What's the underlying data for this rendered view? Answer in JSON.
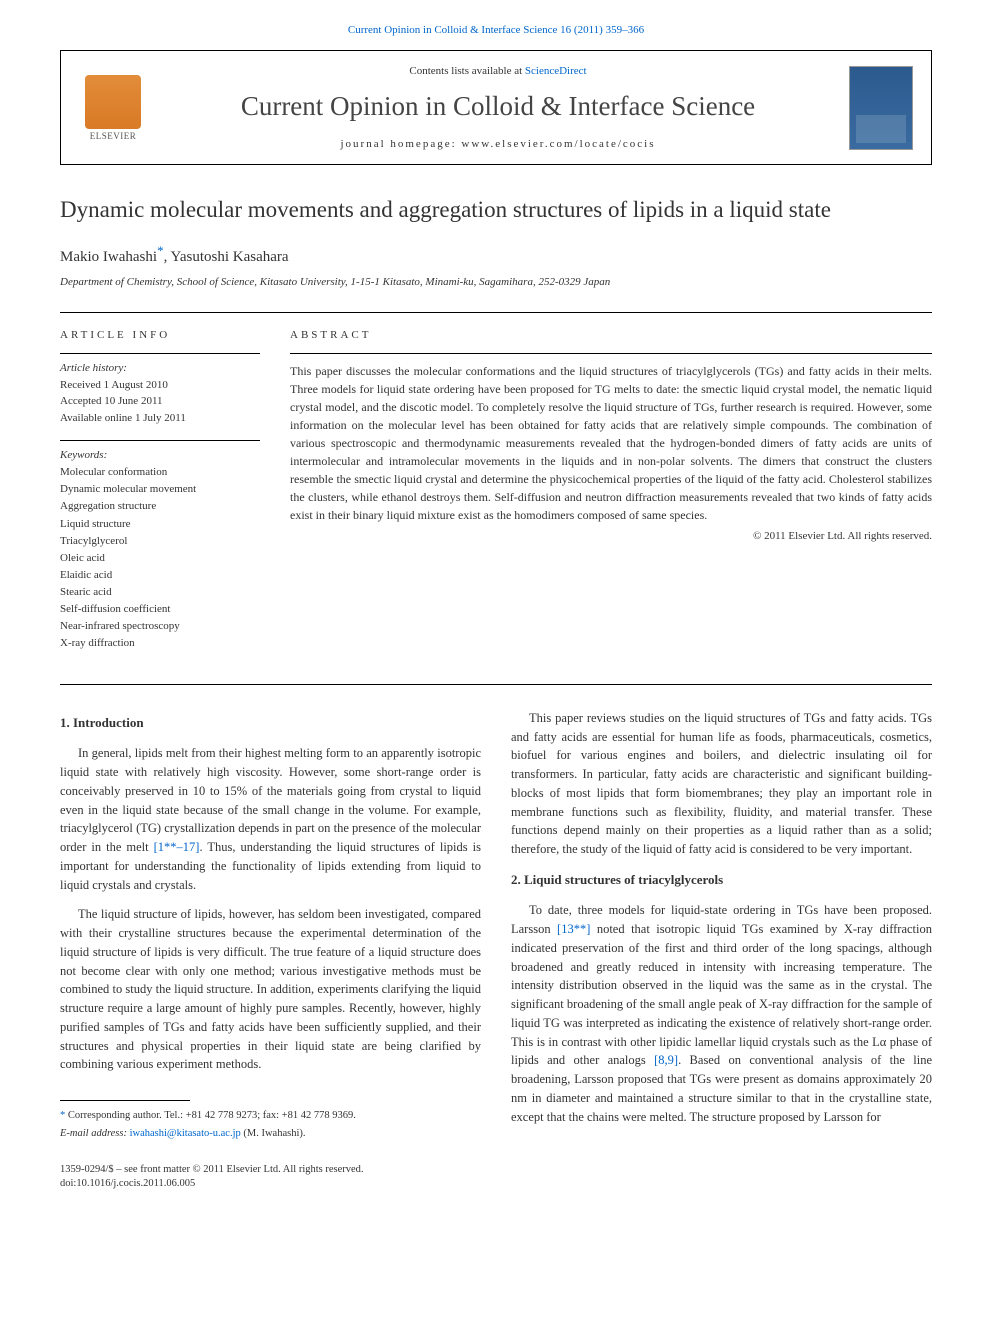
{
  "top_link": "Current Opinion in Colloid & Interface Science 16 (2011) 359–366",
  "header": {
    "contents_prefix": "Contents lists available at ",
    "contents_link": "ScienceDirect",
    "journal": "Current Opinion in Colloid & Interface Science",
    "homepage_prefix": "journal homepage: ",
    "homepage": "www.elsevier.com/locate/cocis",
    "publisher_name": "ELSEVIER"
  },
  "title": "Dynamic molecular movements and aggregation structures of lipids in a liquid state",
  "authors_html": "Makio Iwahashi",
  "author2": ", Yasutoshi Kasahara",
  "corresp_marker": "*",
  "affiliation": "Department of Chemistry, School of Science, Kitasato University, 1-15-1 Kitasato, Minami-ku, Sagamihara, 252-0329 Japan",
  "info": {
    "heading": "ARTICLE INFO",
    "history_label": "Article history:",
    "history": "Received 1 August 2010\nAccepted 10 June 2011\nAvailable online 1 July 2011",
    "keywords_label": "Keywords:",
    "keywords": "Molecular conformation\nDynamic molecular movement\nAggregation structure\nLiquid structure\nTriacylglycerol\nOleic acid\nElaidic acid\nStearic acid\nSelf-diffusion coefficient\nNear-infrared spectroscopy\nX-ray diffraction"
  },
  "abstract": {
    "heading": "ABSTRACT",
    "text": "This paper discusses the molecular conformations and the liquid structures of triacylglycerols (TGs) and fatty acids in their melts. Three models for liquid state ordering have been proposed for TG melts to date: the smectic liquid crystal model, the nematic liquid crystal model, and the discotic model. To completely resolve the liquid structure of TGs, further research is required. However, some information on the molecular level has been obtained for fatty acids that are relatively simple compounds. The combination of various spectroscopic and thermodynamic measurements revealed that the hydrogen-bonded dimers of fatty acids are units of intermolecular and intramolecular movements in the liquids and in non-polar solvents. The dimers that construct the clusters resemble the smectic liquid crystal and determine the physicochemical properties of the liquid of the fatty acid. Cholesterol stabilizes the clusters, while ethanol destroys them. Self-diffusion and neutron diffraction measurements revealed that two kinds of fatty acids exist in their binary liquid mixture exist as the homodimers composed of same species.",
    "copyright": "© 2011 Elsevier Ltd. All rights reserved."
  },
  "sections": {
    "intro_heading": "1. Introduction",
    "intro_p1": "In general, lipids melt from their highest melting form to an apparently isotropic liquid state with relatively high viscosity. However, some short-range order is conceivably preserved in 10 to 15% of the materials going from crystal to liquid even in the liquid state because of the small change in the volume. For example, triacylglycerol (TG) crystallization depends in part on the presence of the molecular order in the melt ",
    "intro_p1_ref": "[1**–17]",
    "intro_p1_tail": ". Thus, understanding the liquid structures of lipids is important for understanding the functionality of lipids extending from liquid to liquid crystals and crystals.",
    "intro_p2": "The liquid structure of lipids, however, has seldom been investigated, compared with their crystalline structures because the experimental determination of the liquid structure of lipids is very difficult. The true feature of a liquid structure does not become clear with only one method; various investigative methods must be combined to study the liquid structure. In addition, experiments clarifying the liquid structure require a large amount of highly pure samples. Recently, however, highly purified samples of TGs and fatty acids have been sufficiently supplied, and their structures and physical properties in their liquid state are being clarified by combining various experiment methods.",
    "col2_p1": "This paper reviews studies on the liquid structures of TGs and fatty acids. TGs and fatty acids are essential for human life as foods, pharmaceuticals, cosmetics, biofuel for various engines and boilers, and dielectric insulating oil for transformers. In particular, fatty acids are characteristic and significant building-blocks of most lipids that form biomembranes; they play an important role in membrane functions such as flexibility, fluidity, and material transfer. These functions depend mainly on their properties as a liquid rather than as a solid; therefore, the study of the liquid of fatty acid is considered to be very important.",
    "sec2_heading": "2. Liquid structures of triacylglycerols",
    "sec2_p1a": "To date, three models for liquid-state ordering in TGs have been proposed. Larsson ",
    "sec2_ref1": "[13**]",
    "sec2_p1b": " noted that isotropic liquid TGs examined by X-ray diffraction indicated preservation of the first and third order of the long spacings, although broadened and greatly reduced in intensity with increasing temperature. The intensity distribution observed in the liquid was the same as in the crystal. The significant broadening of the small angle peak of X-ray diffraction for the sample of liquid TG was interpreted as indicating the existence of relatively short-range order. This is in contrast with other lipidic lamellar liquid crystals such as the Lα phase of lipids and other analogs ",
    "sec2_ref2": "[8,9]",
    "sec2_p1c": ". Based on conventional analysis of the line broadening, Larsson proposed that TGs were present as domains approximately 20 nm in diameter and maintained a structure similar to that in the crystalline state, except that the chains were melted. The structure proposed by Larsson for"
  },
  "footnote": {
    "corresp": "Corresponding author. Tel.: +81 42 778 9273; fax: +81 42 778 9369.",
    "email_label": "E-mail address:",
    "email": "iwahashi@kitasato-u.ac.jp",
    "email_who": "(M. Iwahashi)."
  },
  "bottom": {
    "issn": "1359-0294/$ – see front matter © 2011 Elsevier Ltd. All rights reserved.",
    "doi": "doi:10.1016/j.cocis.2011.06.005"
  }
}
